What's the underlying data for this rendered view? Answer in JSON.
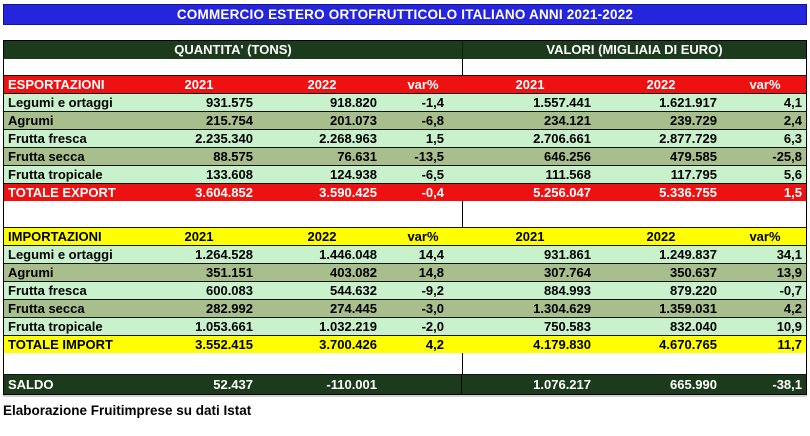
{
  "title": "COMMERCIO ESTERO ORTOFRUTTICOLO ITALIANO ANNI 2021-2022",
  "header": {
    "quantity": "QUANTITA' (TONS)",
    "values": "VALORI (MIGLIAIA DI EURO)"
  },
  "columns": [
    "2021",
    "2022",
    "var%",
    "2021",
    "2022",
    "var%"
  ],
  "export": {
    "label": "ESPORTAZIONI",
    "rows": [
      {
        "label": "Legumi e ortaggi",
        "cells": [
          "931.575",
          "918.820",
          "-1,4",
          "1.557.441",
          "1.621.917",
          "4,1"
        ]
      },
      {
        "label": "Agrumi",
        "cells": [
          "215.754",
          "201.073",
          "-6,8",
          "234.121",
          "239.729",
          "2,4"
        ]
      },
      {
        "label": "Frutta fresca",
        "cells": [
          "2.235.340",
          "2.268.963",
          "1,5",
          "2.706.661",
          "2.877.729",
          "6,3"
        ]
      },
      {
        "label": "Frutta secca",
        "cells": [
          "88.575",
          "76.631",
          "-13,5",
          "646.256",
          "479.585",
          "-25,8"
        ]
      },
      {
        "label": "Frutta tropicale",
        "cells": [
          "133.608",
          "124.938",
          "-6,5",
          "111.568",
          "117.795",
          "5,6"
        ]
      }
    ],
    "total": {
      "label": "TOTALE EXPORT",
      "cells": [
        "3.604.852",
        "3.590.425",
        "-0,4",
        "5.256.047",
        "5.336.755",
        "1,5"
      ]
    }
  },
  "imports": {
    "label": "IMPORTAZIONI",
    "rows": [
      {
        "label": "Legumi e ortaggi",
        "cells": [
          "1.264.528",
          "1.446.048",
          "14,4",
          "931.861",
          "1.249.837",
          "34,1"
        ]
      },
      {
        "label": "Agrumi",
        "cells": [
          "351.151",
          "403.082",
          "14,8",
          "307.764",
          "350.637",
          "13,9"
        ]
      },
      {
        "label": "Frutta fresca",
        "cells": [
          "600.083",
          "544.632",
          "-9,2",
          "884.993",
          "879.220",
          "-0,7"
        ]
      },
      {
        "label": "Frutta secca",
        "cells": [
          "282.992",
          "274.445",
          "-3,0",
          "1.304.629",
          "1.359.031",
          "4,2"
        ]
      },
      {
        "label": "Frutta tropicale",
        "cells": [
          "1.053.661",
          "1.032.219",
          "-2,0",
          "750.583",
          "832.040",
          "10,9"
        ]
      }
    ],
    "total": {
      "label": "TOTALE IMPORT",
      "cells": [
        "3.552.415",
        "3.700.426",
        "4,2",
        "4.179.830",
        "4.670.765",
        "11,7"
      ]
    }
  },
  "saldo": {
    "label": "SALDO",
    "cells": [
      "52.437",
      "-110.001",
      "",
      "1.076.217",
      "665.990",
      "-38,1"
    ]
  },
  "footer": "Elaborazione Fruitimprese su dati Istat",
  "colors": {
    "title_bar": "#2525dd",
    "dark_green": "#1c3a1c",
    "export_accent": "#ee1111",
    "import_accent": "#ffff00",
    "row_light": "#c9f1cc",
    "row_sage": "#a8be8c"
  }
}
